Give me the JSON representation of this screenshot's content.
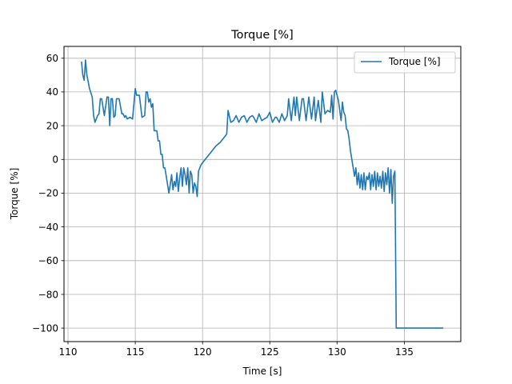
{
  "chart_data": {
    "type": "line",
    "title": "Torque [%]",
    "xlabel": "Time [s]",
    "ylabel": "Torque [%]",
    "xlim": [
      109.7,
      139.2
    ],
    "ylim": [
      -108,
      67
    ],
    "xticks": [
      110,
      115,
      120,
      125,
      130,
      135
    ],
    "yticks": [
      60,
      40,
      20,
      0,
      -20,
      -40,
      -60,
      -80,
      -100
    ],
    "xtick_labels": [
      "110",
      "115",
      "120",
      "125",
      "130",
      "135"
    ],
    "ytick_labels": [
      "60",
      "40",
      "20",
      "0",
      "−20",
      "−40",
      "−60",
      "−80",
      "−100"
    ],
    "grid": true,
    "legend_position": "top-right",
    "series": [
      {
        "name": "Torque [%]",
        "color": "#1f77b4",
        "x": [
          111.0,
          111.1,
          111.2,
          111.3,
          111.4,
          111.6,
          111.8,
          111.9,
          112.0,
          112.2,
          112.3,
          112.4,
          112.5,
          112.7,
          112.9,
          113.0,
          113.1,
          113.2,
          113.3,
          113.4,
          113.5,
          113.6,
          113.8,
          114.0,
          114.1,
          114.2,
          114.3,
          114.4,
          114.6,
          114.8,
          115.0,
          115.1,
          115.3,
          115.5,
          115.7,
          115.8,
          115.9,
          116.0,
          116.1,
          116.2,
          116.3,
          116.4,
          116.6,
          116.7,
          116.8,
          116.9,
          117.0,
          117.1,
          117.2,
          117.3,
          117.4,
          117.5,
          117.6,
          117.7,
          117.8,
          117.9,
          118.0,
          118.1,
          118.2,
          118.3,
          118.4,
          118.5,
          118.6,
          118.7,
          118.8,
          118.9,
          119.0,
          119.1,
          119.2,
          119.3,
          119.4,
          119.5,
          119.6,
          119.7,
          119.9,
          120.2,
          120.5,
          120.8,
          121.0,
          121.3,
          121.6,
          121.8,
          121.9,
          122.1,
          122.3,
          122.5,
          122.7,
          122.9,
          123.1,
          123.3,
          123.5,
          123.7,
          123.8,
          124.0,
          124.2,
          124.4,
          124.6,
          124.8,
          125.0,
          125.2,
          125.4,
          125.5,
          125.7,
          125.9,
          126.1,
          126.3,
          126.4,
          126.6,
          126.8,
          126.9,
          127.0,
          127.2,
          127.4,
          127.5,
          127.7,
          127.9,
          128.1,
          128.3,
          128.4,
          128.6,
          128.8,
          128.9,
          129.1,
          129.3,
          129.5,
          129.6,
          129.7,
          129.8,
          129.9,
          130.0,
          130.1,
          130.3,
          130.4,
          130.5,
          130.6,
          130.7,
          130.8,
          130.9,
          131.0,
          131.1,
          131.2,
          131.3,
          131.4,
          131.5,
          131.6,
          131.7,
          131.8,
          131.9,
          132.0,
          132.1,
          132.2,
          132.3,
          132.4,
          132.5,
          132.6,
          132.7,
          132.8,
          132.9,
          133.0,
          133.1,
          133.2,
          133.3,
          133.4,
          133.5,
          133.6,
          133.7,
          133.8,
          133.9,
          134.0,
          134.1,
          134.2,
          134.3,
          134.4,
          134.6,
          135.0,
          136.0,
          137.0,
          137.9
        ],
        "y": [
          58,
          50,
          47,
          59,
          50,
          42,
          37,
          26,
          22,
          26,
          27,
          36,
          36,
          26,
          37,
          37,
          20,
          36,
          36,
          25,
          26,
          36,
          36,
          27,
          27,
          25,
          26,
          24,
          25,
          24,
          42,
          38,
          38,
          25,
          26,
          40,
          40,
          34,
          36,
          31,
          33,
          17,
          17,
          11,
          11,
          3,
          3,
          -5,
          -5,
          -10,
          -15,
          -20,
          -15,
          -9,
          -18,
          -13,
          -16,
          -8,
          -19,
          -11,
          -5,
          -16,
          -5,
          -9,
          -15,
          -5,
          -20,
          -7,
          -9,
          -20,
          -14,
          -16,
          -22,
          -7,
          -3,
          0,
          3,
          6,
          8,
          10,
          13,
          15,
          29,
          22,
          23,
          26,
          22,
          25,
          26,
          22,
          25,
          26,
          25,
          22,
          27,
          23,
          24,
          25,
          28,
          22,
          25,
          25,
          22,
          27,
          23,
          26,
          36,
          23,
          37,
          26,
          37,
          23,
          36,
          36,
          23,
          37,
          24,
          37,
          23,
          35,
          22,
          40,
          27,
          29,
          28,
          38,
          24,
          40,
          41,
          38,
          35,
          23,
          34,
          28,
          26,
          18,
          17,
          12,
          5,
          0,
          -5,
          -10,
          -5,
          -15,
          -8,
          -17,
          -9,
          -18,
          -8,
          -18,
          -10,
          -12,
          -8,
          -18,
          -9,
          -16,
          -7,
          -18,
          -8,
          -16,
          -10,
          -17,
          -7,
          -19,
          -8,
          -15,
          -5,
          -20,
          -6,
          -26,
          -10,
          -7,
          -100,
          -100,
          -100,
          -100,
          -100,
          -100
        ]
      }
    ]
  }
}
